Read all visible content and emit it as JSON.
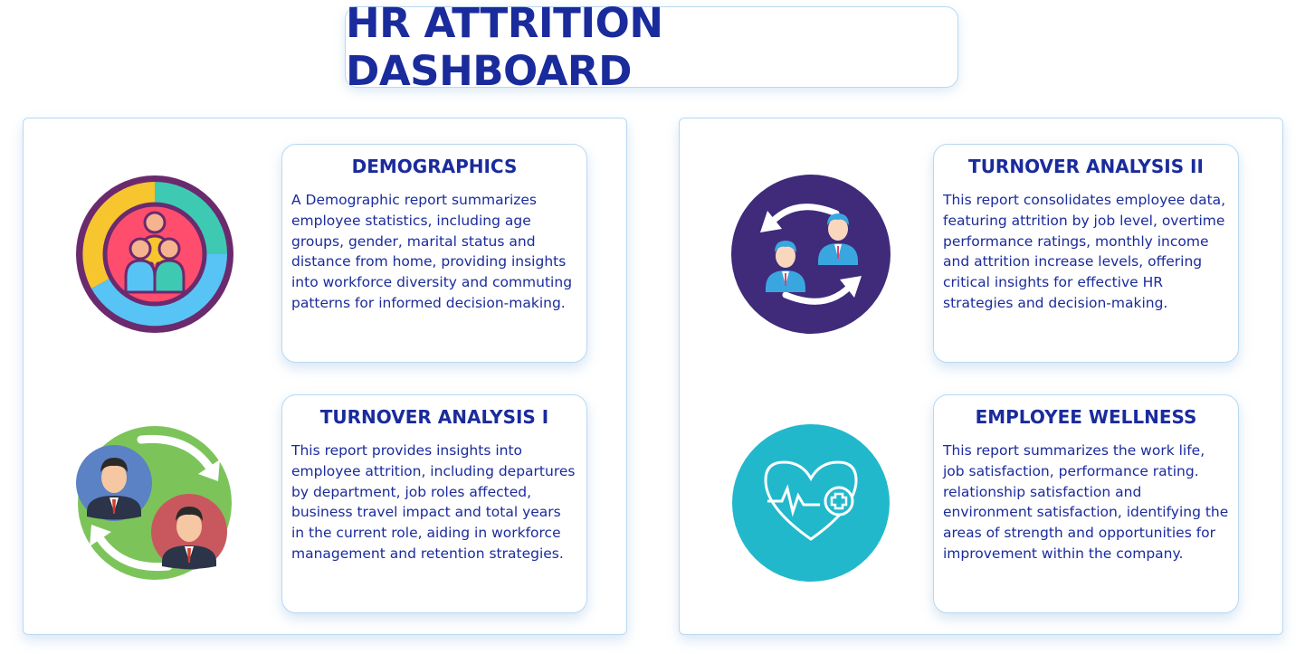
{
  "header": {
    "title": "HR ATTRITION DASHBOARD"
  },
  "cards": {
    "demographics": {
      "title": "DEMOGRAPHICS",
      "description": "A Demographic report summarizes employee statistics, including age groups, gender, marital status and distance from home, providing insights into workforce diversity and commuting patterns for informed decision-making.",
      "icon": "family-group-icon"
    },
    "turnover_1": {
      "title": "TURNOVER ANALYSIS I",
      "description": "This report provides insights into employee attrition, including departures by department, job roles affected, business travel impact and total years in the current role, aiding in workforce management and retention strategies.",
      "icon": "employee-exchange-icon"
    },
    "turnover_2": {
      "title": "TURNOVER ANALYSIS II",
      "description": "This report consolidates employee data, featuring attrition by job level, overtime performance ratings, monthly income and attrition increase levels, offering critical insights for effective HR strategies and decision-making.",
      "icon": "employee-swap-icon"
    },
    "wellness": {
      "title": "EMPLOYEE WELLNESS",
      "description": "This report summarizes the work life, job satisfaction, performance rating. relationship satisfaction and environment satisfaction, identifying the areas of strength and opportunities for improvement within the company.",
      "icon": "heart-health-icon"
    }
  },
  "colors": {
    "title_text": "#1a2b9c",
    "border": "#b8d8f2",
    "demographics_ring": [
      "#f7c52e",
      "#3ec9b3",
      "#58c3f5",
      "#ff4d6d"
    ],
    "turnover1_bg": "#7cc45a",
    "turnover2_bg": "#3f2b7a",
    "wellness_bg": "#22b8cc"
  }
}
